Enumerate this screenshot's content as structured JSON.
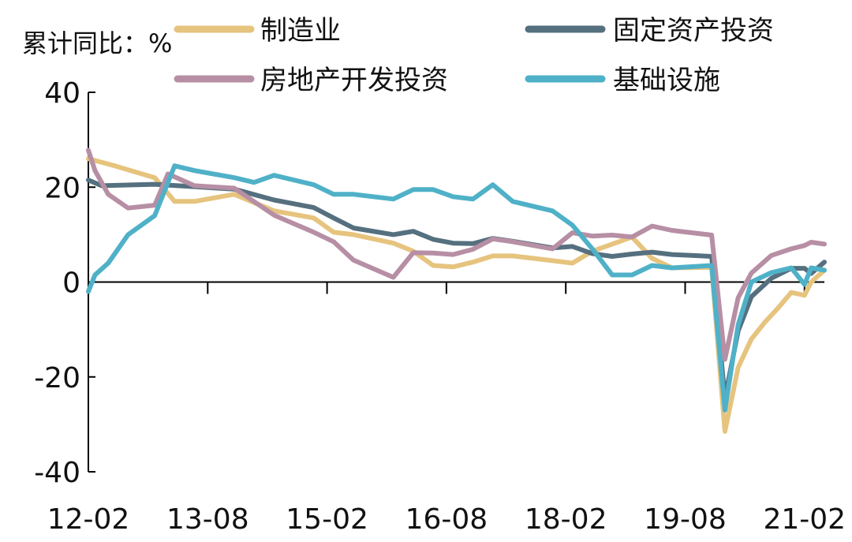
{
  "chart_data": {
    "type": "line",
    "title": "",
    "unit_label": "累计同比：%",
    "xlabel": "",
    "ylabel": "",
    "ylim": [
      -40,
      40
    ],
    "yticks": [
      40,
      20,
      0,
      -20,
      -40
    ],
    "ytick_labels": [
      "40",
      "20",
      "0",
      "-20",
      "-40"
    ],
    "x_range": [
      "2012-02",
      "2021-05"
    ],
    "xticks": [
      "2012-02",
      "2013-08",
      "2015-02",
      "2016-08",
      "2018-02",
      "2019-08",
      "2021-02"
    ],
    "xtick_labels": [
      "12-02",
      "13-08",
      "15-02",
      "16-08",
      "18-02",
      "19-08",
      "21-02"
    ],
    "grid": false,
    "legend_position": "top",
    "series": [
      {
        "name": "制造业",
        "color": "#E6C47E",
        "points": [
          [
            "2012-02",
            26
          ],
          [
            "2012-06",
            24.5
          ],
          [
            "2012-12",
            22
          ],
          [
            "2013-03",
            17
          ],
          [
            "2013-06",
            17
          ],
          [
            "2013-12",
            18.5
          ],
          [
            "2014-06",
            15
          ],
          [
            "2014-12",
            13.5
          ],
          [
            "2015-03",
            10.5
          ],
          [
            "2015-06",
            10
          ],
          [
            "2015-12",
            8.2
          ],
          [
            "2016-03",
            6.5
          ],
          [
            "2016-06",
            3.5
          ],
          [
            "2016-09",
            3.2
          ],
          [
            "2016-12",
            4.2
          ],
          [
            "2017-03",
            5.5
          ],
          [
            "2017-06",
            5.5
          ],
          [
            "2017-12",
            4.5
          ],
          [
            "2018-03",
            4
          ],
          [
            "2018-06",
            6.5
          ],
          [
            "2018-12",
            9.5
          ],
          [
            "2019-03",
            5
          ],
          [
            "2019-06",
            3
          ],
          [
            "2019-12",
            3.1
          ],
          [
            "2020-02",
            -31.5
          ],
          [
            "2020-04",
            -18
          ],
          [
            "2020-06",
            -12
          ],
          [
            "2020-08",
            -8.5
          ],
          [
            "2020-10",
            -5.5
          ],
          [
            "2020-12",
            -2.2
          ],
          [
            "2021-02",
            -2.8
          ],
          [
            "2021-03",
            0
          ],
          [
            "2021-05",
            2.5
          ]
        ]
      },
      {
        "name": "固定资产投资",
        "color": "#55707F",
        "points": [
          [
            "2012-02",
            21.5
          ],
          [
            "2012-04",
            20.3
          ],
          [
            "2012-09",
            20.5
          ],
          [
            "2012-12",
            20.6
          ],
          [
            "2013-06",
            20.1
          ],
          [
            "2013-12",
            19.6
          ],
          [
            "2014-06",
            17.3
          ],
          [
            "2014-12",
            15.7
          ],
          [
            "2015-03",
            13.5
          ],
          [
            "2015-06",
            11.4
          ],
          [
            "2015-12",
            10
          ],
          [
            "2016-03",
            10.7
          ],
          [
            "2016-06",
            9
          ],
          [
            "2016-09",
            8.2
          ],
          [
            "2016-12",
            8.1
          ],
          [
            "2017-03",
            9.2
          ],
          [
            "2017-06",
            8.6
          ],
          [
            "2017-12",
            7.2
          ],
          [
            "2018-03",
            7.5
          ],
          [
            "2018-06",
            6
          ],
          [
            "2018-09",
            5.4
          ],
          [
            "2018-12",
            5.9
          ],
          [
            "2019-03",
            6.3
          ],
          [
            "2019-06",
            5.8
          ],
          [
            "2019-12",
            5.4
          ],
          [
            "2020-02",
            -24.5
          ],
          [
            "2020-04",
            -10.3
          ],
          [
            "2020-06",
            -3.1
          ],
          [
            "2020-09",
            0.8
          ],
          [
            "2020-12",
            2.9
          ],
          [
            "2021-02",
            2.9
          ],
          [
            "2021-03",
            1.8
          ],
          [
            "2021-05",
            4.2
          ]
        ]
      },
      {
        "name": "房地产开发投资",
        "color": "#B78FA5",
        "points": [
          [
            "2012-02",
            27.8
          ],
          [
            "2012-03",
            23.5
          ],
          [
            "2012-05",
            18.5
          ],
          [
            "2012-08",
            15.6
          ],
          [
            "2012-12",
            16.2
          ],
          [
            "2013-02",
            22.8
          ],
          [
            "2013-06",
            20.3
          ],
          [
            "2013-12",
            19.8
          ],
          [
            "2014-06",
            14.1
          ],
          [
            "2014-12",
            10.5
          ],
          [
            "2015-03",
            8.5
          ],
          [
            "2015-06",
            4.6
          ],
          [
            "2015-12",
            1
          ],
          [
            "2016-03",
            6.2
          ],
          [
            "2016-06",
            6.1
          ],
          [
            "2016-09",
            5.8
          ],
          [
            "2016-12",
            6.9
          ],
          [
            "2017-03",
            9.1
          ],
          [
            "2017-06",
            8.5
          ],
          [
            "2017-12",
            7
          ],
          [
            "2018-03",
            10.4
          ],
          [
            "2018-06",
            9.7
          ],
          [
            "2018-09",
            9.9
          ],
          [
            "2018-12",
            9.5
          ],
          [
            "2019-03",
            11.8
          ],
          [
            "2019-06",
            10.9
          ],
          [
            "2019-12",
            9.9
          ],
          [
            "2020-02",
            -16.3
          ],
          [
            "2020-04",
            -3.3
          ],
          [
            "2020-06",
            1.9
          ],
          [
            "2020-09",
            5.6
          ],
          [
            "2020-12",
            7
          ],
          [
            "2021-02",
            7.7
          ],
          [
            "2021-03",
            8.4
          ],
          [
            "2021-05",
            8
          ]
        ]
      },
      {
        "name": "基础设施",
        "color": "#4FB1C8",
        "points": [
          [
            "2012-02",
            -2
          ],
          [
            "2012-03",
            1.5
          ],
          [
            "2012-05",
            4
          ],
          [
            "2012-08",
            10
          ],
          [
            "2012-12",
            14
          ],
          [
            "2013-03",
            24.5
          ],
          [
            "2013-06",
            23.5
          ],
          [
            "2013-12",
            22
          ],
          [
            "2014-03",
            21
          ],
          [
            "2014-06",
            22.5
          ],
          [
            "2014-12",
            20.5
          ],
          [
            "2015-03",
            18.5
          ],
          [
            "2015-06",
            18.5
          ],
          [
            "2015-12",
            17.5
          ],
          [
            "2016-03",
            19.5
          ],
          [
            "2016-06",
            19.5
          ],
          [
            "2016-09",
            18
          ],
          [
            "2016-12",
            17.5
          ],
          [
            "2017-03",
            20.5
          ],
          [
            "2017-06",
            17
          ],
          [
            "2017-12",
            15
          ],
          [
            "2018-03",
            12
          ],
          [
            "2018-06",
            7
          ],
          [
            "2018-09",
            1.5
          ],
          [
            "2018-12",
            1.5
          ],
          [
            "2019-03",
            3.5
          ],
          [
            "2019-06",
            3
          ],
          [
            "2019-12",
            3.5
          ],
          [
            "2020-02",
            -27
          ],
          [
            "2020-04",
            -9
          ],
          [
            "2020-06",
            0
          ],
          [
            "2020-09",
            2
          ],
          [
            "2020-12",
            3
          ],
          [
            "2021-02",
            -0.5
          ],
          [
            "2021-03",
            3
          ],
          [
            "2021-05",
            2.5
          ]
        ]
      }
    ]
  }
}
